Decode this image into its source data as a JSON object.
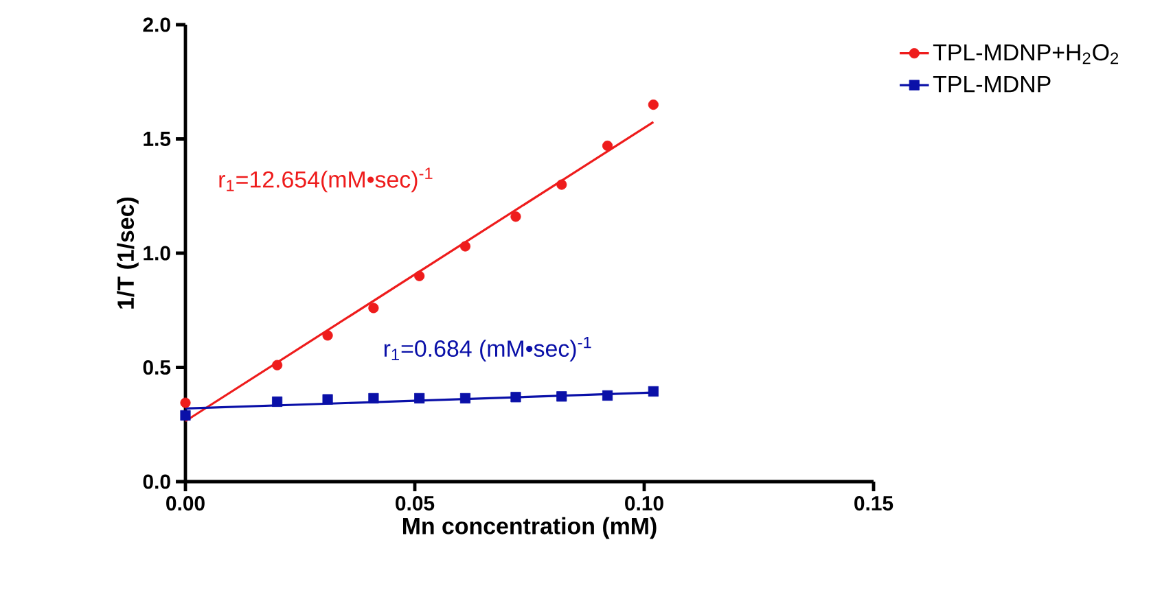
{
  "chart_data": {
    "type": "scatter",
    "xlabel": "Mn concentration (mM)",
    "ylabel": "1/T (1/sec)",
    "xlim": [
      0,
      0.15
    ],
    "ylim": [
      0,
      2.0
    ],
    "xticks": [
      {
        "value": 0,
        "label": "0.00"
      },
      {
        "value": 0.05,
        "label": "0.05"
      },
      {
        "value": 0.1,
        "label": "0.10"
      },
      {
        "value": 0.15,
        "label": "0.15"
      }
    ],
    "yticks": [
      {
        "value": 0,
        "label": "0.0"
      },
      {
        "value": 0.5,
        "label": "0.5"
      },
      {
        "value": 1.0,
        "label": "1.0"
      },
      {
        "value": 1.5,
        "label": "1.5"
      },
      {
        "value": 2.0,
        "label": "2.0"
      }
    ],
    "legend": "right",
    "grid": false,
    "series": [
      {
        "name": "TPL-MDNP+H$_{2}$O$_{2}$",
        "color": "#ee1c1c",
        "marker": "circle",
        "x": [
          0,
          0.02,
          0.031,
          0.041,
          0.051,
          0.061,
          0.072,
          0.082,
          0.092,
          0.102
        ],
        "values": [
          0.345,
          0.51,
          0.64,
          0.76,
          0.9,
          1.03,
          1.16,
          1.3,
          1.47,
          1.65
        ]
      },
      {
        "name": "TPL-MDNP",
        "color": "#0a10a8",
        "marker": "square",
        "x": [
          0,
          0.02,
          0.031,
          0.041,
          0.051,
          0.061,
          0.072,
          0.082,
          0.092,
          0.102
        ],
        "values": [
          0.29,
          0.35,
          0.36,
          0.365,
          0.365,
          0.365,
          0.37,
          0.373,
          0.377,
          0.395
        ]
      },
      {
        "type": "line",
        "color": "#ee1c1c",
        "x": [
          0,
          0.102
        ],
        "values": [
          0.265,
          1.574
        ]
      },
      {
        "type": "line",
        "color": "#0a10a8",
        "x": [
          0,
          0.102
        ],
        "values": [
          0.32,
          0.39
        ]
      }
    ],
    "annotations": [
      "r$_{1}$=12.654(mM•sec)$^{-1}$",
      "r$_{1}$=0.684 (mM•sec)$^{-1}$"
    ]
  }
}
